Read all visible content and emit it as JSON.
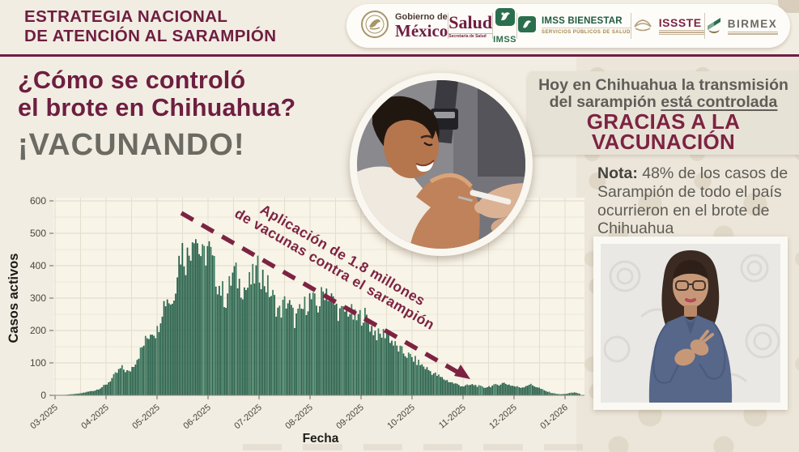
{
  "header": {
    "title_line1": "ESTRATEGIA NACIONAL",
    "title_line2": "DE ATENCIÓN AL SARAMPIÓN",
    "logos": {
      "gobierno_line1": "Gobierno de",
      "gobierno_line2": "México",
      "salud": "Salud",
      "salud_sub": "Secretaría de Salud",
      "imss": "IMSS",
      "imss_bienestar": "IMSS BIENESTAR",
      "imss_bienestar_sub": "SERVICIOS PÚBLICOS DE SALUD",
      "issste": "ISSSTE",
      "birmex": "BIRMEX"
    }
  },
  "main": {
    "question_line1": "¿Cómo se controló",
    "question_line2": "el brote en Chihuahua?",
    "answer": "¡VACUNANDO!",
    "controlled_line1": "Hoy en Chihuahua la transmisión",
    "controlled_line2_prefix": "del sarampión ",
    "controlled_line2_underlined": "está controlada",
    "gracias_line1": "GRACIAS A LA",
    "gracias_line2": "VACUNACIÓN",
    "note_label": "Nota:",
    "note_text": " 48% de los casos de Sarampión de todo el país ocurrieron en el brote de Chihuahua"
  },
  "chart_data": {
    "type": "bar",
    "title": "",
    "xlabel": "Fecha",
    "ylabel": "Casos activos",
    "ylim": [
      0,
      600
    ],
    "yticks": [
      0,
      100,
      200,
      300,
      400,
      500,
      600
    ],
    "x_tick_labels": [
      "03-2025",
      "04-2025",
      "05-2025",
      "06-2025",
      "07-2025",
      "08-2025",
      "09-2025",
      "10-2025",
      "11-2025",
      "12-2025",
      "01-2026"
    ],
    "grid": true,
    "bar_color": "#26604a",
    "bar_color_light": "#3d7a5f",
    "annotation": {
      "line1": "Aplicación de 1.8 millones",
      "line2": "de vacunas contra el sarampión",
      "color": "#7d2342"
    },
    "series_note": "daily active measles cases, values estimated from plot; keypoints are [months since 2025-03-01, cases]",
    "series_keypoints": [
      [
        0,
        0
      ],
      [
        0.25,
        2
      ],
      [
        0.5,
        6
      ],
      [
        0.8,
        16
      ],
      [
        1.0,
        32
      ],
      [
        1.15,
        58
      ],
      [
        1.3,
        85
      ],
      [
        1.45,
        70
      ],
      [
        1.6,
        112
      ],
      [
        1.75,
        160
      ],
      [
        1.9,
        205
      ],
      [
        2.0,
        195
      ],
      [
        2.1,
        272
      ],
      [
        2.2,
        305
      ],
      [
        2.3,
        282
      ],
      [
        2.4,
        398
      ],
      [
        2.48,
        455
      ],
      [
        2.56,
        420
      ],
      [
        2.64,
        442
      ],
      [
        2.72,
        530
      ],
      [
        2.8,
        465
      ],
      [
        2.9,
        415
      ],
      [
        3.0,
        462
      ],
      [
        3.1,
        398
      ],
      [
        3.2,
        345
      ],
      [
        3.35,
        295
      ],
      [
        3.5,
        382
      ],
      [
        3.62,
        345
      ],
      [
        3.75,
        328
      ],
      [
        3.9,
        365
      ],
      [
        4.0,
        390
      ],
      [
        4.12,
        350
      ],
      [
        4.25,
        308
      ],
      [
        4.4,
        255
      ],
      [
        4.55,
        295
      ],
      [
        4.7,
        232
      ],
      [
        4.85,
        265
      ],
      [
        5.0,
        300
      ],
      [
        5.15,
        270
      ],
      [
        5.3,
        335
      ],
      [
        5.45,
        288
      ],
      [
        5.6,
        250
      ],
      [
        5.75,
        265
      ],
      [
        5.9,
        232
      ],
      [
        6.05,
        252
      ],
      [
        6.2,
        210
      ],
      [
        6.35,
        182
      ],
      [
        6.5,
        196
      ],
      [
        6.65,
        155
      ],
      [
        6.8,
        135
      ],
      [
        7.0,
        115
      ],
      [
        7.2,
        92
      ],
      [
        7.4,
        70
      ],
      [
        7.6,
        52
      ],
      [
        7.8,
        38
      ],
      [
        8.0,
        28
      ],
      [
        8.2,
        33
      ],
      [
        8.4,
        24
      ],
      [
        8.6,
        30
      ],
      [
        8.8,
        38
      ],
      [
        9.0,
        28
      ],
      [
        9.15,
        24
      ],
      [
        9.3,
        34
      ],
      [
        9.45,
        26
      ],
      [
        9.6,
        14
      ],
      [
        9.75,
        7
      ],
      [
        9.9,
        3
      ],
      [
        10.0,
        4
      ],
      [
        10.1,
        7
      ],
      [
        10.2,
        9
      ],
      [
        10.3,
        4
      ]
    ]
  },
  "colors": {
    "maroon": "#6e1e41",
    "annotation_maroon": "#7d2342",
    "gray_title": "#6b6b63",
    "page_bg": "#f2ede2",
    "plot_bg": "#f8f4e8",
    "bar_green": "#26604a"
  }
}
